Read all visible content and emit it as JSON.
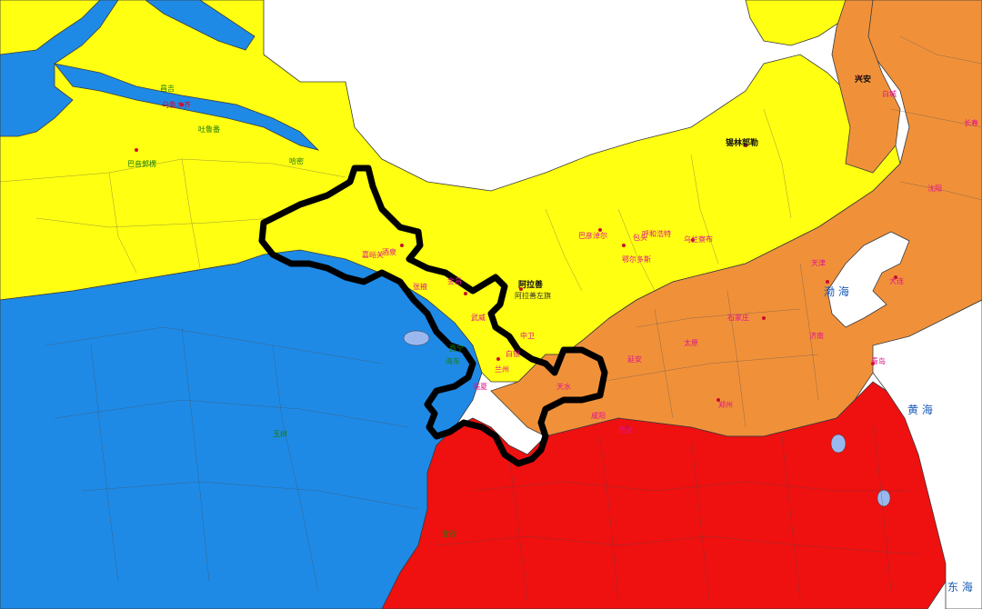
{
  "map": {
    "colors": {
      "blue": "#1e8ae6",
      "yellow": "#ffff12",
      "orange": "#f0913a",
      "red": "#ef1010",
      "sea": "#ffffff",
      "outline": "#000000",
      "label_magenta": "#e0148c",
      "label_green": "#1a7a10"
    },
    "sea_labels": {
      "bohai": "渤 海",
      "huanghai": "黄 海",
      "donghai": "东 海"
    },
    "labels": [
      {
        "key": "ala",
        "text": "阿拉善"
      },
      {
        "key": "alazuo",
        "text": "阿拉善左旗"
      },
      {
        "key": "xilin",
        "text": "锡林郭勒"
      },
      {
        "key": "xingan",
        "text": "兴安"
      },
      {
        "key": "baotou",
        "text": "包头"
      },
      {
        "key": "huhe",
        "text": "呼和浩特"
      },
      {
        "key": "wulan",
        "text": "乌兰察布"
      },
      {
        "key": "eerduo",
        "text": "鄂尔多斯"
      },
      {
        "key": "bayan",
        "text": "巴彦淖尔"
      },
      {
        "key": "jiuquan",
        "text": "酒泉"
      },
      {
        "key": "jiayu",
        "text": "嘉峪关"
      },
      {
        "key": "jinchang",
        "text": "金昌"
      },
      {
        "key": "wuwei",
        "text": "武威"
      },
      {
        "key": "zhangye",
        "text": "张掖"
      },
      {
        "key": "lanzhou",
        "text": "兰州"
      },
      {
        "key": "baiyin",
        "text": "白银"
      },
      {
        "key": "linxia",
        "text": "临夏"
      },
      {
        "key": "zhongwei",
        "text": "中卫"
      },
      {
        "key": "xining",
        "text": "西宁"
      },
      {
        "key": "tianshui",
        "text": "天水"
      },
      {
        "key": "xianyang",
        "text": "咸阳"
      },
      {
        "key": "yanan",
        "text": "延安"
      },
      {
        "key": "taiyuan",
        "text": "太原"
      },
      {
        "key": "shijia",
        "text": "石家庄"
      },
      {
        "key": "tianjin",
        "text": "天津"
      },
      {
        "key": "dalian",
        "text": "大连"
      },
      {
        "key": "qingdao",
        "text": "青岛"
      },
      {
        "key": "zhengzhou",
        "text": "郑州"
      },
      {
        "key": "jinan",
        "text": "济南"
      },
      {
        "key": "xian",
        "text": "西安"
      },
      {
        "key": "hami",
        "text": "哈密"
      },
      {
        "key": "turpan",
        "text": "吐鲁番"
      },
      {
        "key": "changji",
        "text": "昌吉"
      },
      {
        "key": "bayin",
        "text": "巴音郭楞"
      },
      {
        "key": "urumqi",
        "text": "乌鲁木齐"
      },
      {
        "key": "baicheng",
        "text": "白城"
      },
      {
        "key": "changchun",
        "text": "长春"
      },
      {
        "key": "shenyang",
        "text": "沈阳"
      },
      {
        "key": "haidong",
        "text": "海东"
      },
      {
        "key": "yushu",
        "text": "玉树"
      },
      {
        "key": "ganzi",
        "text": "甘孜"
      }
    ]
  }
}
